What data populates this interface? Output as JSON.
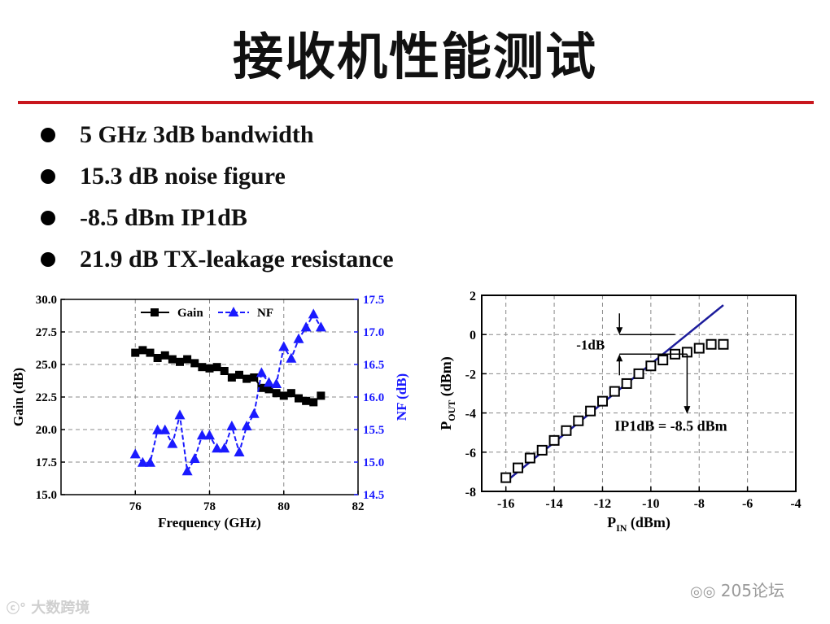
{
  "slide": {
    "title": "接收机性能测试"
  },
  "bullets": [
    "5 GHz 3dB bandwidth",
    "15.3 dB noise figure",
    "-8.5 dBm IP1dB",
    "21.9 dB TX-leakage resistance"
  ],
  "colors": {
    "rule": "#c8161d",
    "gain": "#000000",
    "nf": "#1a1aff",
    "fit": "#1c1c9c"
  },
  "chart_data": [
    {
      "type": "line",
      "xlabel": "Frequency (GHz)",
      "ylabel": "Gain (dB)",
      "y2label": "NF (dB)",
      "xlim": [
        74,
        82
      ],
      "ylim": [
        15.0,
        30.0
      ],
      "y2lim": [
        14.5,
        17.5
      ],
      "xticks": [
        "76",
        "78",
        "80",
        "82"
      ],
      "yticks": [
        "15.0",
        "17.5",
        "20.0",
        "22.5",
        "25.0",
        "27.5",
        "30.0"
      ],
      "y2ticks": [
        "14.5",
        "15.0",
        "15.5",
        "16.0",
        "16.5",
        "17.0",
        "17.5"
      ],
      "grid": true,
      "legend_position": "top",
      "series": [
        {
          "name": "Gain",
          "axis": "left",
          "marker": "square",
          "dash": "solid",
          "x": [
            76.0,
            76.2,
            76.4,
            76.6,
            76.8,
            77.0,
            77.2,
            77.4,
            77.6,
            77.8,
            78.0,
            78.2,
            78.4,
            78.6,
            78.8,
            79.0,
            79.2,
            79.4,
            79.6,
            79.8,
            80.0,
            80.2,
            80.4,
            80.6,
            80.8,
            81.0
          ],
          "y": [
            25.9,
            26.1,
            25.9,
            25.5,
            25.7,
            25.4,
            25.2,
            25.4,
            25.1,
            24.8,
            24.7,
            24.8,
            24.5,
            24.0,
            24.2,
            23.9,
            24.0,
            23.2,
            23.1,
            22.8,
            22.6,
            22.8,
            22.4,
            22.2,
            22.1,
            22.6
          ]
        },
        {
          "name": "NF",
          "axis": "right",
          "marker": "triangle",
          "dash": "dashed",
          "x": [
            76.0,
            76.2,
            76.4,
            76.6,
            76.8,
            77.0,
            77.2,
            77.4,
            77.6,
            77.8,
            78.0,
            78.2,
            78.4,
            78.6,
            78.8,
            79.0,
            79.2,
            79.4,
            79.6,
            79.8,
            80.0,
            80.2,
            80.4,
            80.6,
            80.8,
            81.0
          ],
          "y": [
            15.12,
            14.99,
            14.99,
            15.49,
            15.49,
            15.28,
            15.72,
            14.86,
            15.05,
            15.41,
            15.41,
            15.21,
            15.21,
            15.55,
            15.15,
            15.55,
            15.74,
            16.37,
            16.22,
            16.2,
            16.77,
            16.59,
            16.89,
            17.07,
            17.27,
            17.07
          ]
        }
      ]
    },
    {
      "type": "scatter",
      "xlabel": "P_IN (dBm)",
      "xlabel_main": "P",
      "xlabel_sub": "IN",
      "xlabel_unit": " (dBm)",
      "ylabel": "P_OUT (dBm)",
      "ylabel_main": "P",
      "ylabel_sub": "OUT",
      "ylabel_unit": " (dBm)",
      "xlim": [
        -17,
        -4
      ],
      "ylim": [
        -8,
        2
      ],
      "xticks": [
        "-16",
        "-14",
        "-12",
        "-10",
        "-8",
        "-6",
        "-4"
      ],
      "yticks": [
        "-8",
        "-6",
        "-4",
        "-2",
        "0",
        "2"
      ],
      "grid": true,
      "series": [
        {
          "name": "",
          "marker": "open-square",
          "x": [
            -16.0,
            -15.5,
            -15.0,
            -14.5,
            -14.0,
            -13.5,
            -13.0,
            -12.5,
            -12.0,
            -11.5,
            -11.0,
            -10.5,
            -10.0,
            -9.5,
            -9.0,
            -8.5,
            -8.0,
            -7.5,
            -7.0
          ],
          "y": [
            -7.3,
            -6.8,
            -6.3,
            -5.9,
            -5.4,
            -4.9,
            -4.4,
            -3.9,
            -3.4,
            -2.9,
            -2.5,
            -2.0,
            -1.6,
            -1.3,
            -1.0,
            -0.9,
            -0.7,
            -0.5,
            -0.5
          ]
        },
        {
          "name": "",
          "type": "line",
          "x": [
            -16.0,
            -7.0
          ],
          "y": [
            -7.5,
            1.5
          ]
        }
      ],
      "annotations": {
        "minus1db": "-1dB",
        "ip1db": "IP1dB = -8.5 dBm"
      },
      "ip1db_input_dbm": -8.5
    }
  ],
  "watermarks": {
    "left": "大数跨境",
    "right": "205论坛"
  }
}
